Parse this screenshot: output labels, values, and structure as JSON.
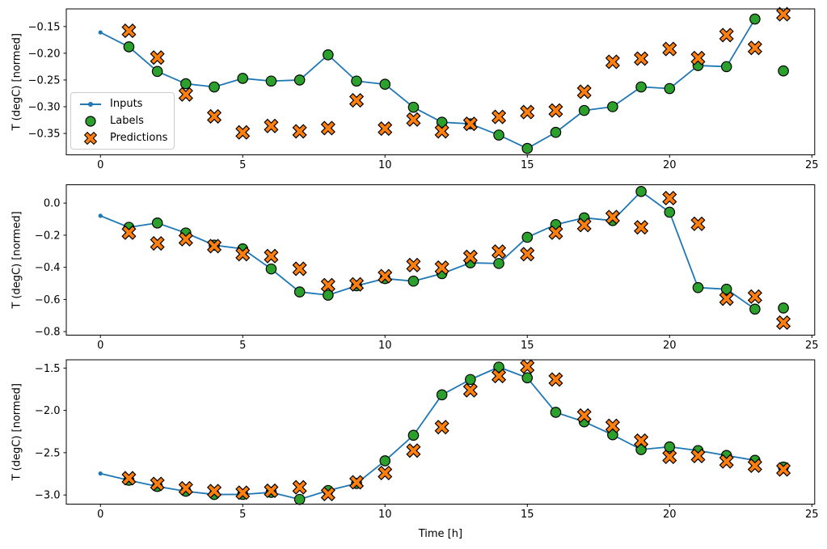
{
  "xlabel": "Time [h]",
  "ylabel": "T (degC) [normed]",
  "legend": {
    "items": [
      {
        "key": "inputs",
        "label": "Inputs"
      },
      {
        "key": "labels",
        "label": "Labels"
      },
      {
        "key": "predictions",
        "label": "Predictions"
      }
    ]
  },
  "colors": {
    "inputs": "#1f77b4",
    "labels": "#2ca02c",
    "predictions": "#ff7f0e",
    "marker_edge": "#000000",
    "axis": "#000000",
    "legend_border": "#cccccc"
  },
  "chart_data": [
    {
      "type": "line",
      "title": "",
      "xlabel": "",
      "ylabel": "T (degC) [normed]",
      "grid": false,
      "legend_position": "center left",
      "xlim": [
        -1.2,
        25.1
      ],
      "ylim": [
        -0.39,
        -0.117
      ],
      "xticks": [
        0,
        5,
        10,
        15,
        20,
        25
      ],
      "xtick_labels": [
        "0",
        "5",
        "10",
        "15",
        "20",
        "25"
      ],
      "yticks": [
        -0.15,
        -0.2,
        -0.25,
        -0.3,
        -0.35
      ],
      "ytick_labels": [
        "−0.15",
        "−0.20",
        "−0.25",
        "−0.30",
        "−0.35"
      ],
      "series": [
        {
          "name": "Inputs",
          "style": "line+dot",
          "x": [
            0,
            1,
            2,
            3,
            4,
            5,
            6,
            7,
            8,
            9,
            10,
            11,
            12,
            13,
            14,
            15,
            16,
            17,
            18,
            19,
            20,
            21,
            22,
            23
          ],
          "y": [
            -0.161,
            -0.188,
            -0.234,
            -0.257,
            -0.263,
            -0.247,
            -0.252,
            -0.25,
            -0.203,
            -0.252,
            -0.258,
            -0.301,
            -0.329,
            -0.332,
            -0.353,
            -0.378,
            -0.348,
            -0.307,
            -0.3,
            -0.263,
            -0.266,
            -0.223,
            -0.225,
            -0.136
          ]
        },
        {
          "name": "Labels",
          "style": "circle",
          "x": [
            1,
            2,
            3,
            4,
            5,
            6,
            7,
            8,
            9,
            10,
            11,
            12,
            13,
            14,
            15,
            16,
            17,
            18,
            19,
            20,
            21,
            22,
            23,
            24
          ],
          "y": [
            -0.188,
            -0.234,
            -0.257,
            -0.263,
            -0.247,
            -0.252,
            -0.25,
            -0.203,
            -0.252,
            -0.258,
            -0.301,
            -0.329,
            -0.332,
            -0.353,
            -0.378,
            -0.348,
            -0.307,
            -0.3,
            -0.263,
            -0.266,
            -0.223,
            -0.225,
            -0.136,
            -0.233
          ]
        },
        {
          "name": "Predictions",
          "style": "x-cross",
          "x": [
            1,
            2,
            3,
            4,
            5,
            6,
            7,
            8,
            9,
            10,
            11,
            12,
            13,
            14,
            15,
            16,
            17,
            18,
            19,
            20,
            21,
            22,
            23,
            24
          ],
          "y": [
            -0.158,
            -0.208,
            -0.277,
            -0.318,
            -0.348,
            -0.336,
            -0.346,
            -0.34,
            -0.288,
            -0.341,
            -0.324,
            -0.346,
            -0.332,
            -0.319,
            -0.31,
            -0.307,
            -0.272,
            -0.216,
            -0.21,
            -0.192,
            -0.209,
            -0.166,
            -0.19,
            -0.127
          ]
        }
      ]
    },
    {
      "type": "line",
      "title": "",
      "xlabel": "",
      "ylabel": "T (degC) [normed]",
      "grid": false,
      "xlim": [
        -1.2,
        25.1
      ],
      "ylim": [
        -0.822,
        0.114
      ],
      "xticks": [
        0,
        5,
        10,
        15,
        20,
        25
      ],
      "xtick_labels": [
        "0",
        "5",
        "10",
        "15",
        "20",
        "25"
      ],
      "yticks": [
        0.0,
        -0.2,
        -0.4,
        -0.6,
        -0.8
      ],
      "ytick_labels": [
        "0.0",
        "−0.2",
        "−0.4",
        "−0.6",
        "−0.8"
      ],
      "series": [
        {
          "name": "Inputs",
          "style": "line+dot",
          "x": [
            0,
            1,
            2,
            3,
            4,
            5,
            6,
            7,
            8,
            9,
            10,
            11,
            12,
            13,
            14,
            15,
            16,
            17,
            18,
            19,
            20,
            21,
            22,
            23
          ],
          "y": [
            -0.079,
            -0.151,
            -0.124,
            -0.186,
            -0.262,
            -0.285,
            -0.41,
            -0.553,
            -0.573,
            -0.515,
            -0.47,
            -0.486,
            -0.439,
            -0.372,
            -0.376,
            -0.213,
            -0.134,
            -0.092,
            -0.109,
            0.072,
            -0.057,
            -0.526,
            -0.536,
            -0.66
          ]
        },
        {
          "name": "Labels",
          "style": "circle",
          "x": [
            1,
            2,
            3,
            4,
            5,
            6,
            7,
            8,
            9,
            10,
            11,
            12,
            13,
            14,
            15,
            16,
            17,
            18,
            19,
            20,
            21,
            22,
            23,
            24
          ],
          "y": [
            -0.151,
            -0.124,
            -0.186,
            -0.262,
            -0.285,
            -0.41,
            -0.553,
            -0.573,
            -0.515,
            -0.47,
            -0.486,
            -0.439,
            -0.372,
            -0.376,
            -0.213,
            -0.134,
            -0.092,
            -0.109,
            0.072,
            -0.057,
            -0.526,
            -0.536,
            -0.66,
            -0.653
          ]
        },
        {
          "name": "Predictions",
          "style": "x-cross",
          "x": [
            1,
            2,
            3,
            4,
            5,
            6,
            7,
            8,
            9,
            10,
            11,
            12,
            13,
            14,
            15,
            16,
            17,
            18,
            19,
            20,
            21,
            22,
            23,
            24
          ],
          "y": [
            -0.184,
            -0.251,
            -0.225,
            -0.268,
            -0.318,
            -0.33,
            -0.409,
            -0.511,
            -0.506,
            -0.455,
            -0.386,
            -0.402,
            -0.335,
            -0.302,
            -0.318,
            -0.184,
            -0.137,
            -0.087,
            -0.151,
            0.031,
            -0.129,
            -0.595,
            -0.582,
            -0.744
          ]
        }
      ]
    },
    {
      "type": "line",
      "title": "",
      "xlabel": "Time [h]",
      "ylabel": "T (degC) [normed]",
      "grid": false,
      "xlim": [
        -1.2,
        25.1
      ],
      "ylim": [
        -3.108,
        -1.402
      ],
      "xticks": [
        0,
        5,
        10,
        15,
        20,
        25
      ],
      "xtick_labels": [
        "0",
        "5",
        "10",
        "15",
        "20",
        "25"
      ],
      "yticks": [
        -1.5,
        -2.0,
        -2.5,
        -3.0
      ],
      "ytick_labels": [
        "−1.5",
        "−2.0",
        "−2.5",
        "−3.0"
      ],
      "series": [
        {
          "name": "Inputs",
          "style": "line+dot",
          "x": [
            0,
            1,
            2,
            3,
            4,
            5,
            6,
            7,
            8,
            9,
            10,
            11,
            12,
            13,
            14,
            15,
            16,
            17,
            18,
            19,
            20,
            21,
            22,
            23
          ],
          "y": [
            -2.746,
            -2.826,
            -2.899,
            -2.956,
            -2.994,
            -2.993,
            -2.969,
            -3.052,
            -2.947,
            -2.864,
            -2.596,
            -2.294,
            -1.816,
            -1.635,
            -1.488,
            -1.615,
            -2.023,
            -2.135,
            -2.288,
            -2.463,
            -2.431,
            -2.475,
            -2.533,
            -2.59
          ]
        },
        {
          "name": "Labels",
          "style": "circle",
          "x": [
            1,
            2,
            3,
            4,
            5,
            6,
            7,
            8,
            9,
            10,
            11,
            12,
            13,
            14,
            15,
            16,
            17,
            18,
            19,
            20,
            21,
            22,
            23,
            24
          ],
          "y": [
            -2.826,
            -2.899,
            -2.956,
            -2.994,
            -2.993,
            -2.969,
            -3.052,
            -2.947,
            -2.864,
            -2.596,
            -2.294,
            -1.816,
            -1.635,
            -1.488,
            -1.615,
            -2.023,
            -2.135,
            -2.288,
            -2.463,
            -2.431,
            -2.475,
            -2.533,
            -2.59,
            -2.67
          ]
        },
        {
          "name": "Predictions",
          "style": "x-cross",
          "x": [
            1,
            2,
            3,
            4,
            5,
            6,
            7,
            8,
            9,
            10,
            11,
            12,
            13,
            14,
            15,
            16,
            17,
            18,
            19,
            20,
            21,
            22,
            23,
            24
          ],
          "y": [
            -2.802,
            -2.869,
            -2.921,
            -2.954,
            -2.973,
            -2.95,
            -2.909,
            -2.988,
            -2.85,
            -2.74,
            -2.475,
            -2.198,
            -1.762,
            -1.594,
            -1.482,
            -1.635,
            -2.061,
            -2.183,
            -2.358,
            -2.549,
            -2.539,
            -2.603,
            -2.654,
            -2.698
          ]
        }
      ]
    }
  ]
}
